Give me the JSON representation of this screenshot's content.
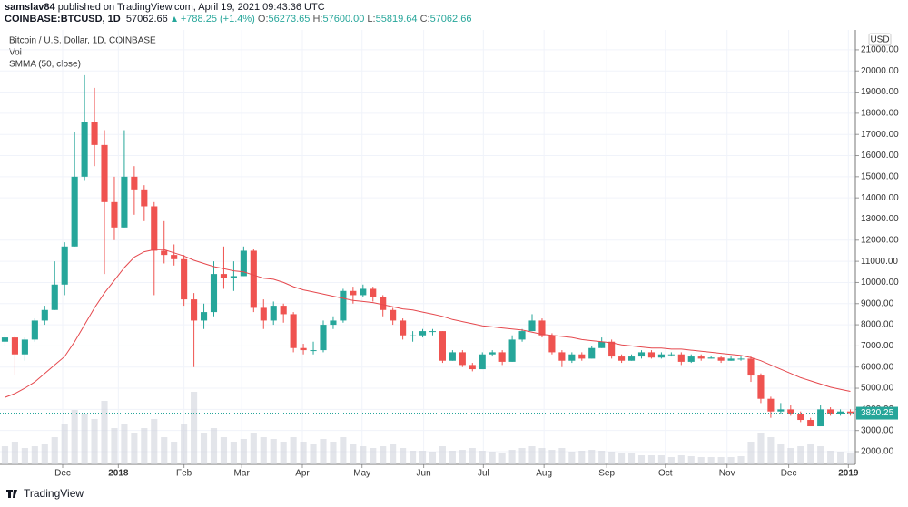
{
  "header": {
    "author": "samslav84",
    "published": "published on TradingView.com, April 19, 2021 09:43:36 UTC",
    "symbol": "COINBASE:BTCUSD, 1D",
    "last": "57062.66",
    "change": "+788.25 (+1.4%)",
    "ohlc": [
      {
        "label": "O:",
        "value": "56273.65"
      },
      {
        "label": "H:",
        "value": "57600.00"
      },
      {
        "label": "L:",
        "value": "55819.64"
      },
      {
        "label": "C:",
        "value": "57062.66"
      }
    ]
  },
  "chart_data": {
    "type": "candlestick",
    "title": "Bitcoin / U.S. Dollar, 1D, COINBASE",
    "currency": "USD",
    "up_color": "#26a69a",
    "down_color": "#ef5350",
    "grid": true,
    "open": [
      7200,
      7400,
      6600,
      7300,
      8200,
      8700,
      9900,
      11700,
      15000,
      17600,
      16500,
      13800,
      12600,
      15000,
      14400,
      13600,
      11500,
      11300,
      11100,
      9200,
      8200,
      8600,
      10400,
      10200,
      10300,
      11500,
      8800,
      8200,
      8900,
      8500,
      6900,
      6800,
      6800,
      8000,
      8200,
      9600,
      9400,
      9700,
      9300,
      8700,
      8200,
      7500,
      7500,
      7700,
      7700,
      6300,
      6700,
      6100,
      5900,
      6600,
      6700,
      6250,
      7300,
      7700,
      8200,
      7500,
      6700,
      6300,
      6600,
      6400,
      6900,
      7200,
      6500,
      6300,
      6500,
      6700,
      6450,
      6600,
      6600,
      6250,
      6500,
      6400,
      6450,
      6300,
      6400,
      6400,
      5600,
      4500,
      3900,
      4000,
      3800,
      3500,
      3200,
      4000,
      3800,
      3900
    ],
    "high": [
      7600,
      7500,
      7400,
      8300,
      8900,
      11000,
      11900,
      17100,
      19800,
      19200,
      17200,
      15000,
      17200,
      15500,
      14600,
      13800,
      12900,
      11800,
      11300,
      9500,
      9000,
      11000,
      11700,
      11000,
      11700,
      11600,
      9200,
      9100,
      9000,
      8600,
      7100,
      7200,
      8200,
      8400,
      9700,
      9800,
      9900,
      9800,
      9400,
      8800,
      8300,
      7700,
      7800,
      7800,
      7700,
      6800,
      6800,
      6200,
      6700,
      6800,
      6800,
      7500,
      7800,
      8500,
      8300,
      7600,
      6800,
      6700,
      6700,
      7000,
      7400,
      7300,
      6600,
      6600,
      6800,
      6800,
      6700,
      6700,
      6700,
      6600,
      6600,
      6500,
      6500,
      6500,
      6500,
      6500,
      5700,
      4600,
      4300,
      4200,
      3900,
      3600,
      4200,
      4100,
      4000,
      4000
    ],
    "low": [
      7000,
      5600,
      6300,
      7200,
      8000,
      8700,
      9400,
      11700,
      14800,
      15500,
      10400,
      12000,
      12600,
      13200,
      12900,
      9400,
      10900,
      10800,
      8900,
      6000,
      7800,
      8400,
      9700,
      9600,
      10300,
      8600,
      7800,
      8000,
      8100,
      6700,
      6600,
      6600,
      6700,
      7800,
      8100,
      9000,
      9300,
      9100,
      8400,
      8000,
      7300,
      7200,
      7400,
      7500,
      6200,
      6300,
      6000,
      5800,
      5900,
      6500,
      6100,
      6250,
      7200,
      7700,
      7400,
      6600,
      6000,
      6200,
      6300,
      6400,
      6900,
      6400,
      6200,
      6300,
      6400,
      6400,
      6400,
      6500,
      6100,
      6200,
      6300,
      6400,
      6200,
      6300,
      6300,
      5300,
      4300,
      3600,
      3800,
      3700,
      3400,
      3200,
      3200,
      3700,
      3700,
      3700
    ],
    "close": [
      7400,
      6600,
      7300,
      8200,
      8700,
      9900,
      11700,
      15000,
      17600,
      16500,
      13800,
      12600,
      15000,
      14400,
      13600,
      11500,
      11300,
      11100,
      9200,
      8200,
      8600,
      10400,
      10200,
      10300,
      11500,
      8800,
      8200,
      8900,
      8500,
      6900,
      6800,
      6800,
      8000,
      8200,
      9600,
      9400,
      9700,
      9300,
      8700,
      8200,
      7500,
      7500,
      7700,
      7700,
      6300,
      6700,
      6100,
      5900,
      6600,
      6700,
      6250,
      7300,
      7700,
      8200,
      7500,
      6700,
      6300,
      6600,
      6400,
      6900,
      7200,
      6500,
      6300,
      6500,
      6700,
      6450,
      6600,
      6600,
      6250,
      6500,
      6400,
      6450,
      6300,
      6400,
      6400,
      5600,
      4500,
      3900,
      4000,
      3800,
      3500,
      3200,
      4000,
      3800,
      3900,
      3820
    ],
    "volume": {
      "name": "Vol",
      "color": "#d1d4dc",
      "values": [
        20,
        25,
        18,
        20,
        22,
        30,
        45,
        60,
        55,
        50,
        70,
        40,
        45,
        35,
        40,
        50,
        30,
        25,
        45,
        80,
        35,
        40,
        30,
        25,
        28,
        35,
        30,
        28,
        25,
        30,
        25,
        22,
        28,
        25,
        30,
        22,
        20,
        18,
        20,
        22,
        18,
        15,
        15,
        14,
        20,
        15,
        16,
        18,
        15,
        14,
        12,
        16,
        18,
        20,
        18,
        16,
        18,
        14,
        15,
        16,
        15,
        14,
        12,
        12,
        10,
        10,
        10,
        8,
        10,
        9,
        8,
        8,
        8,
        8,
        9,
        25,
        35,
        30,
        22,
        18,
        20,
        22,
        20,
        15,
        14,
        13
      ]
    },
    "indicators": [
      {
        "name": "SMMA (50, close)",
        "color": "#e5484d",
        "values": [
          4570,
          4750,
          5000,
          5300,
          5700,
          6100,
          6500,
          7200,
          8000,
          8800,
          9500,
          10100,
          10700,
          11200,
          11450,
          11550,
          11550,
          11400,
          11250,
          11050,
          10900,
          10750,
          10650,
          10550,
          10500,
          10350,
          10200,
          10150,
          10000,
          9800,
          9650,
          9550,
          9450,
          9350,
          9250,
          9150,
          9100,
          9050,
          8950,
          8850,
          8750,
          8700,
          8600,
          8500,
          8400,
          8250,
          8150,
          8050,
          7950,
          7900,
          7850,
          7800,
          7750,
          7650,
          7550,
          7500,
          7450,
          7400,
          7300,
          7250,
          7200,
          7150,
          7050,
          7000,
          6950,
          6900,
          6900,
          6850,
          6850,
          6800,
          6750,
          6700,
          6650,
          6600,
          6550,
          6450,
          6300,
          6100,
          5900,
          5700,
          5500,
          5350,
          5200,
          5050,
          4950,
          4850
        ]
      }
    ],
    "last_price": 3820.25,
    "ylim": [
      1400,
      21940
    ],
    "yticks": [
      {
        "value": 2000,
        "label": "2000.00"
      },
      {
        "value": 3000,
        "label": "3000.00"
      },
      {
        "value": 4000,
        "label": "4000.00"
      },
      {
        "value": 5000,
        "label": "5000.00"
      },
      {
        "value": 6000,
        "label": "6000.00"
      },
      {
        "value": 7000,
        "label": "7000.00"
      },
      {
        "value": 8000,
        "label": "8000.00"
      },
      {
        "value": 9000,
        "label": "9000.00"
      },
      {
        "value": 10000,
        "label": "10000.00"
      },
      {
        "value": 11000,
        "label": "11000.00"
      },
      {
        "value": 12000,
        "label": "12000.00"
      },
      {
        "value": 13000,
        "label": "13000.00"
      },
      {
        "value": 14000,
        "label": "14000.00"
      },
      {
        "value": 15000,
        "label": "15000.00"
      },
      {
        "value": 16000,
        "label": "16000.00"
      },
      {
        "value": 17000,
        "label": "17000.00"
      },
      {
        "value": 18000,
        "label": "18000.00"
      },
      {
        "value": 19000,
        "label": "19000.00"
      },
      {
        "value": 20000,
        "label": "20000.00"
      },
      {
        "value": 21000,
        "label": "21000.00"
      }
    ],
    "xlim": [
      -0.5,
      85.5
    ],
    "xticks": [
      {
        "value": 5.8,
        "label": "Dec"
      },
      {
        "value": 11.4,
        "label": "2018"
      },
      {
        "value": 18.0,
        "label": "Feb"
      },
      {
        "value": 23.8,
        "label": "Mar"
      },
      {
        "value": 29.9,
        "label": "Apr"
      },
      {
        "value": 35.9,
        "label": "May"
      },
      {
        "value": 42.1,
        "label": "Jun"
      },
      {
        "value": 48.1,
        "label": "Jul"
      },
      {
        "value": 54.2,
        "label": "Aug"
      },
      {
        "value": 60.5,
        "label": "Sep"
      },
      {
        "value": 66.4,
        "label": "Oct"
      },
      {
        "value": 72.6,
        "label": "Nov"
      },
      {
        "value": 78.8,
        "label": "Dec"
      },
      {
        "value": 84.8,
        "label": "2019"
      }
    ]
  },
  "footer": {
    "brand": "TradingView"
  }
}
